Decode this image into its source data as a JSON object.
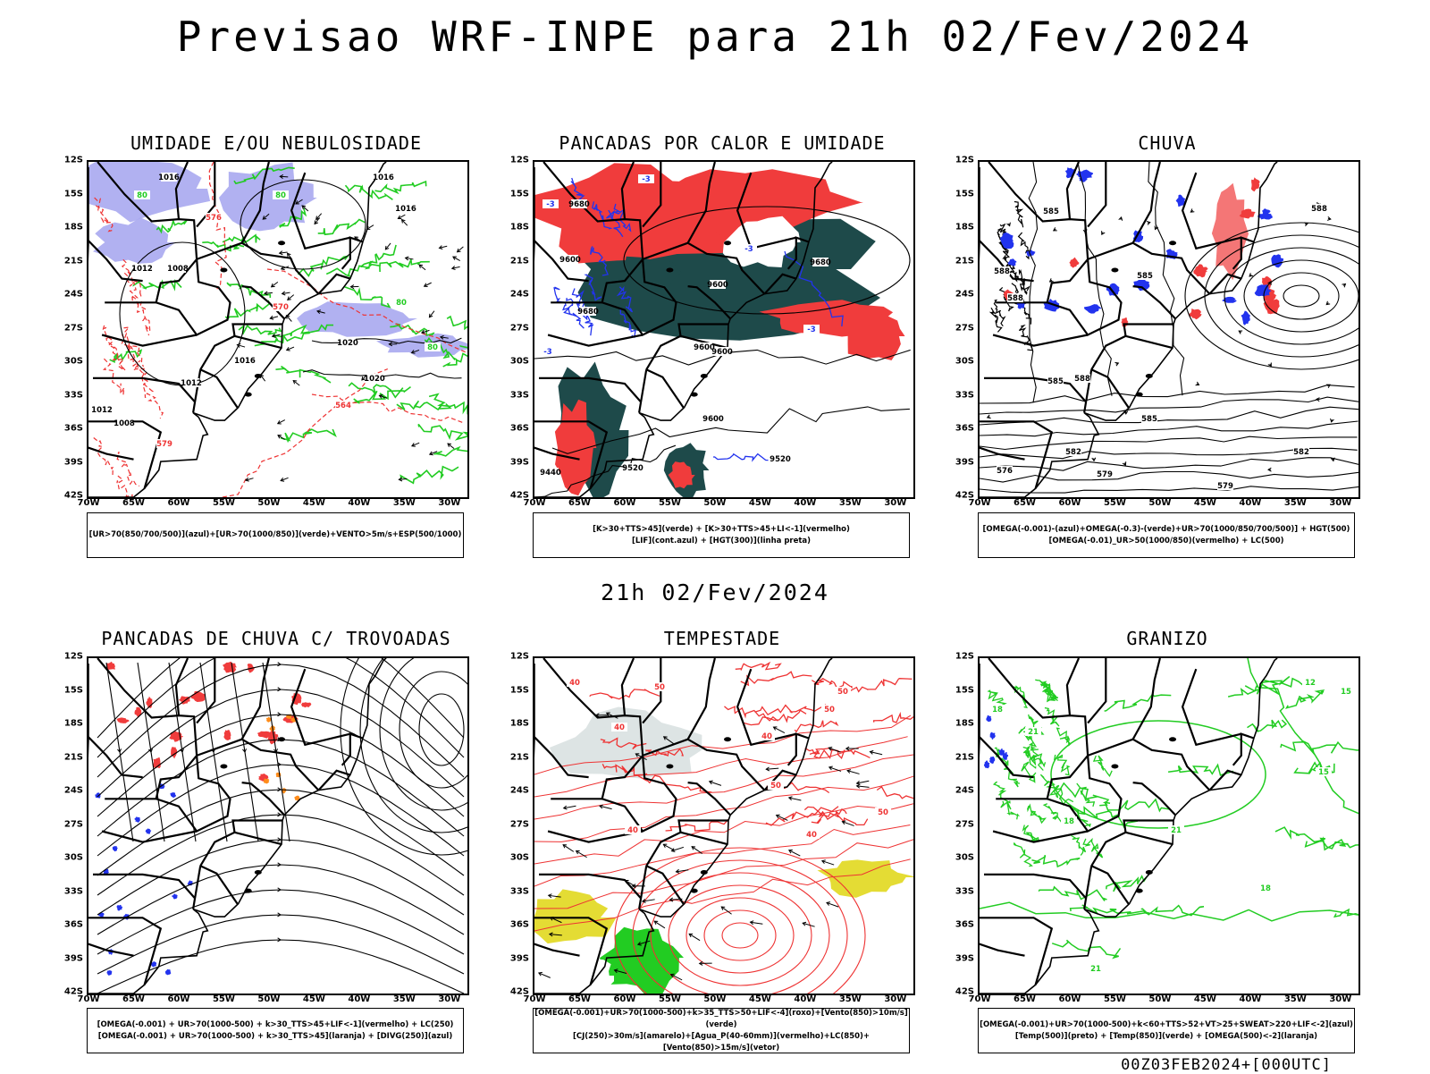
{
  "title": "Previsao WRF-INPE  para 21h 02/Fev/2024",
  "subtitle": "21h 02/Fev/2024",
  "footer": "00Z03FEB2024+[000UTC]",
  "lat_labels": [
    "12S",
    "15S",
    "18S",
    "21S",
    "24S",
    "27S",
    "30S",
    "33S",
    "36S",
    "39S",
    "42S"
  ],
  "lon_labels": [
    "70W",
    "65W",
    "60W",
    "55W",
    "50W",
    "45W",
    "40W",
    "35W",
    "30W"
  ],
  "colors": {
    "blue_fill": "#a8a8f0",
    "green_contour": "#22cc22",
    "red_contour": "#ee3333",
    "red_fill": "#f03c3c",
    "dark_teal_fill": "#1e4a4a",
    "blue_contour": "#2233ee",
    "yellow_fill": "#e4dc34",
    "orange_fill": "#ff8c1a"
  },
  "panels": [
    {
      "title": "UMIDADE E/OU NEBULOSIDADE",
      "legend": [
        "[UR>70(850/700/500)](azul)+[UR>70(1000/850)](verde)+VENTO>5m/s+ESP(500/1000)"
      ],
      "contour_labels": [
        "1016",
        "1016",
        "1016",
        "1008",
        "1012",
        "1012",
        "1016",
        "1020",
        "1020",
        "1008",
        "1012",
        "80",
        "80",
        "80",
        "80",
        "576",
        "570",
        "564",
        "579"
      ]
    },
    {
      "title": "PANCADAS POR CALOR E UMIDADE",
      "legend": [
        "[K>30+TTS>45](verde) + [K>30+TTS>45+LI<-1](vermelho)",
        "[LIF](cont.azul) + [HGT(300)](linha preta)"
      ],
      "contour_labels": [
        "9680",
        "9600",
        "9680",
        "9600",
        "9600",
        "9600",
        "9680",
        "9600",
        "9520",
        "9520",
        "9440",
        "-3",
        "-3",
        "-3",
        "-3",
        "-3"
      ]
    },
    {
      "title": "CHUVA",
      "legend": [
        "[OMEGA(-0.001)-(azul)+OMEGA(-0.3)-(verde)+UR>70(1000/850/700/500)] + HGT(500)",
        "[OMEGA(-0.01)_UR>50(1000/850)(vermelho) + LC(500)"
      ],
      "contour_labels": [
        "585",
        "588",
        "588",
        "585",
        "588",
        "585",
        "585",
        "588",
        "582",
        "582",
        "579",
        "579",
        "576"
      ]
    },
    {
      "title": "PANCADAS DE CHUVA C/ TROVOADAS",
      "legend": [
        "[OMEGA(-0.001) + UR>70(1000-500) + k>30_TTS>45+LIF<-1](vermelho) + LC(250)",
        "[OMEGA(-0.001) + UR>70(1000-500) + k>30_TTS>45](laranja) + [DIVG(250)](azul)"
      ]
    },
    {
      "title": "TEMPESTADE",
      "legend": [
        "[OMEGA(-0.001)+UR>70(1000-500)+k>35_TTS>50+LIF<-4](roxo)+[Vento(850)>10m/s](verde)",
        "[CJ(250)>30m/s](amarelo)+[Agua_P(40-60mm)](vermelho)+LC(850)+[Vento(850)>15m/s](vetor)"
      ],
      "contour_labels": [
        "40",
        "50",
        "40",
        "50",
        "40",
        "50",
        "40",
        "50",
        "40",
        "50"
      ]
    },
    {
      "title": "GRANIZO",
      "legend": [
        "[OMEGA(-0.001)+UR>70(1000-500)+k<60+TTS>52+VT>25+SWEAT>220+LIF<-2](azul)",
        "[Temp(500)](preto) + [Temp(850)](verde) + [OMEGA(500)<-2](laranja)"
      ],
      "contour_labels": [
        "18",
        "21",
        "18",
        "21",
        "15",
        "12",
        "15",
        "18",
        "21"
      ]
    }
  ]
}
